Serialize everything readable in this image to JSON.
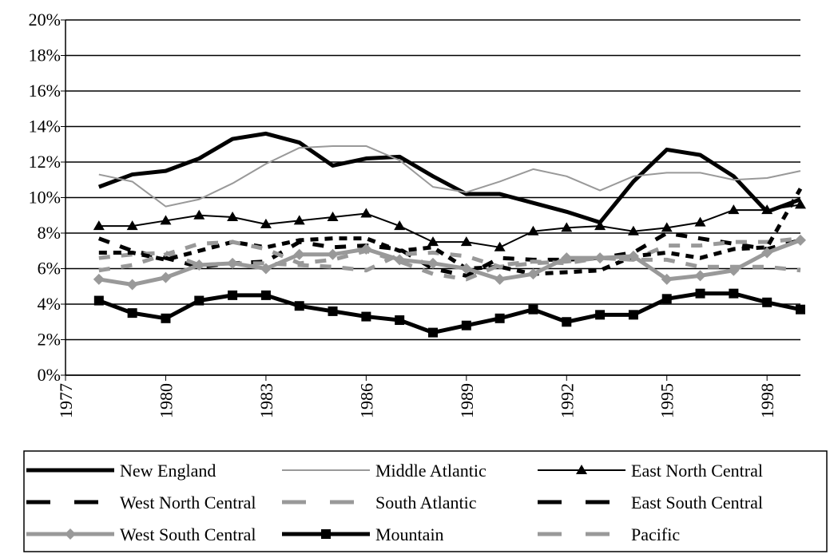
{
  "chart_data": {
    "type": "line",
    "x": [
      1978,
      1979,
      1980,
      1981,
      1982,
      1983,
      1984,
      1985,
      1986,
      1987,
      1988,
      1989,
      1990,
      1991,
      1992,
      1993,
      1994,
      1995,
      1996,
      1997,
      1998,
      1999
    ],
    "xlim": [
      1977,
      1999
    ],
    "xticks": [
      1977,
      1980,
      1983,
      1986,
      1989,
      1992,
      1995,
      1998
    ],
    "ylim": [
      0,
      20
    ],
    "yticks": [
      {
        "value": 0,
        "label": "0%"
      },
      {
        "value": 2,
        "label": "2%"
      },
      {
        "value": 4,
        "label": "4%"
      },
      {
        "value": 6,
        "label": "6%"
      },
      {
        "value": 8,
        "label": "8%"
      },
      {
        "value": 10,
        "label": "10%"
      },
      {
        "value": 12,
        "label": "12%"
      },
      {
        "value": 14,
        "label": "14%"
      },
      {
        "value": 16,
        "label": "16%"
      },
      {
        "value": 18,
        "label": "18%"
      },
      {
        "value": 20,
        "label": "20%"
      }
    ],
    "grid": true,
    "series": [
      {
        "name": "New England",
        "color": "#000000",
        "style": "thick",
        "marker": "none",
        "values": [
          10.6,
          11.3,
          11.5,
          12.2,
          13.3,
          13.6,
          13.1,
          11.8,
          12.2,
          12.3,
          11.2,
          10.2,
          10.2,
          9.7,
          9.2,
          8.6,
          10.9,
          12.7,
          12.4,
          11.2,
          9.2,
          9.9
        ]
      },
      {
        "name": "Middle Atlantic",
        "color": "#999999",
        "style": "thin",
        "marker": "none",
        "values": [
          11.3,
          10.9,
          9.5,
          9.9,
          10.8,
          11.9,
          12.8,
          12.9,
          12.9,
          12.1,
          10.6,
          10.3,
          10.9,
          11.6,
          11.2,
          10.4,
          11.2,
          11.4,
          11.4,
          11.0,
          11.1,
          11.5
        ]
      },
      {
        "name": "East North Central",
        "color": "#000000",
        "style": "thin",
        "marker": "triangle",
        "values": [
          8.4,
          8.4,
          8.7,
          9.0,
          8.9,
          8.5,
          8.7,
          8.9,
          9.1,
          8.4,
          7.5,
          7.5,
          7.2,
          8.1,
          8.3,
          8.4,
          8.1,
          8.3,
          8.6,
          9.3,
          9.3,
          9.6
        ]
      },
      {
        "name": "West North Central",
        "color": "#000000",
        "style": "thick-dashed",
        "marker": "none",
        "values": [
          7.7,
          7.0,
          6.6,
          6.1,
          6.3,
          6.4,
          7.5,
          7.2,
          7.3,
          7.1,
          6.0,
          5.6,
          6.6,
          6.5,
          6.5,
          6.6,
          6.9,
          8.0,
          7.7,
          7.4,
          7.1,
          7.6
        ]
      },
      {
        "name": "South Atlantic",
        "color": "#999999",
        "style": "thick-dashed",
        "marker": "none",
        "values": [
          6.6,
          6.8,
          6.9,
          6.2,
          6.3,
          6.3,
          6.2,
          6.1,
          5.9,
          6.8,
          6.9,
          6.7,
          6.1,
          6.3,
          6.4,
          6.6,
          6.5,
          7.3,
          7.3,
          7.5,
          7.5,
          7.7
        ]
      },
      {
        "name": "East South Central",
        "color": "#000000",
        "style": "dashed",
        "marker": "none",
        "values": [
          6.9,
          6.9,
          6.5,
          7.0,
          7.5,
          7.2,
          7.6,
          7.7,
          7.7,
          7.0,
          7.2,
          6.0,
          6.1,
          5.7,
          5.8,
          5.9,
          6.7,
          6.9,
          6.6,
          7.1,
          7.2,
          10.5
        ]
      },
      {
        "name": "West South Central",
        "color": "#999999",
        "style": "thick",
        "marker": "diamond",
        "values": [
          5.4,
          5.1,
          5.5,
          6.2,
          6.3,
          6.0,
          6.8,
          6.8,
          7.1,
          6.5,
          6.3,
          6.0,
          5.4,
          5.7,
          6.6,
          6.6,
          6.7,
          5.4,
          5.6,
          5.9,
          6.9,
          7.6
        ]
      },
      {
        "name": "Mountain",
        "color": "#000000",
        "style": "thick",
        "marker": "square",
        "values": [
          4.2,
          3.5,
          3.2,
          4.2,
          4.5,
          4.5,
          3.9,
          3.6,
          3.3,
          3.1,
          2.4,
          2.8,
          3.2,
          3.7,
          3.0,
          3.4,
          3.4,
          4.3,
          4.6,
          4.6,
          4.1,
          3.7
        ]
      },
      {
        "name": "Pacific",
        "color": "#999999",
        "style": "thick-dashed",
        "marker": "none",
        "values": [
          5.9,
          6.2,
          6.8,
          7.4,
          7.5,
          7.1,
          6.3,
          6.5,
          7.0,
          6.4,
          5.7,
          5.4,
          6.2,
          6.4,
          6.3,
          6.6,
          6.5,
          6.5,
          6.1,
          6.1,
          6.1,
          5.9
        ]
      }
    ]
  }
}
